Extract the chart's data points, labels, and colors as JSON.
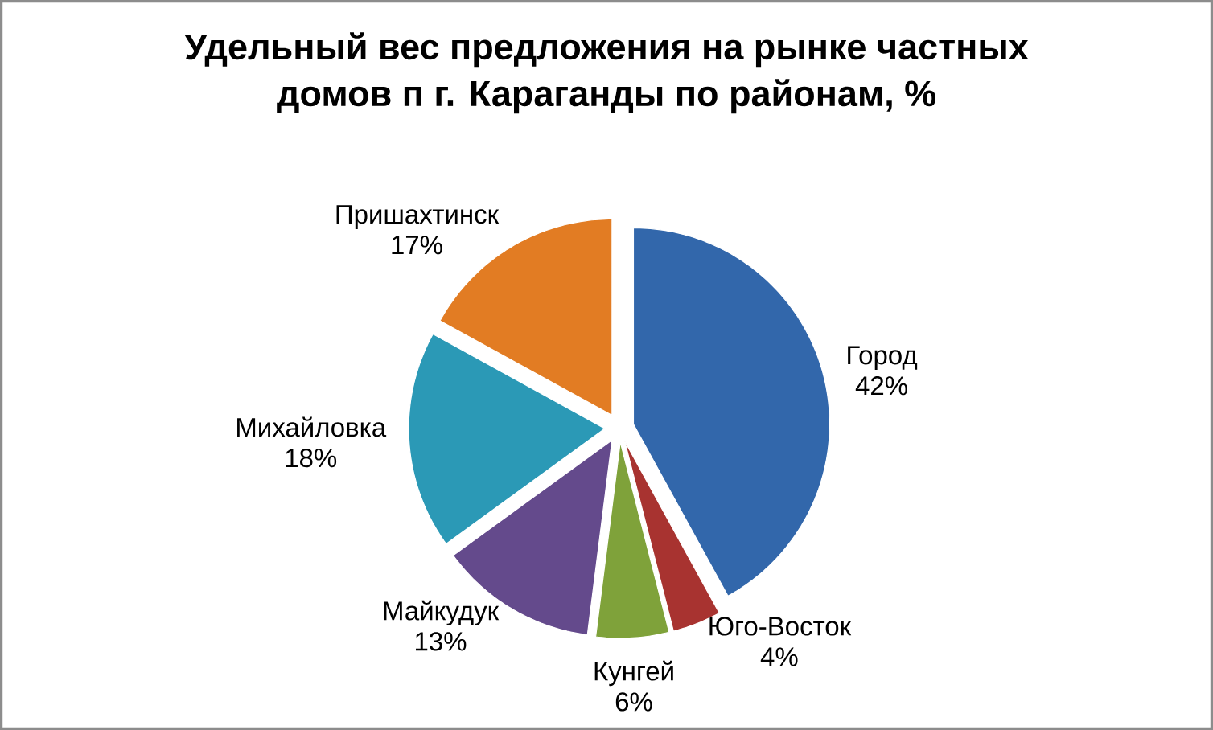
{
  "chart_data": {
    "type": "pie",
    "title": "Удельный вес предложения на рынке частных домов п г. Караганды по районам, %",
    "categories": [
      "Город",
      "Юго-Восток",
      "Кунгей",
      "Майкудук",
      "Михайловка",
      "Пришахтинск"
    ],
    "values": [
      42,
      4,
      6,
      13,
      18,
      17
    ],
    "colors": [
      "#3267ab",
      "#a83330",
      "#7fa23a",
      "#644a8c",
      "#2b99b6",
      "#e27c23"
    ],
    "value_labels": [
      "42%",
      "4%",
      "6%",
      "13%",
      "18%",
      "17%"
    ]
  }
}
